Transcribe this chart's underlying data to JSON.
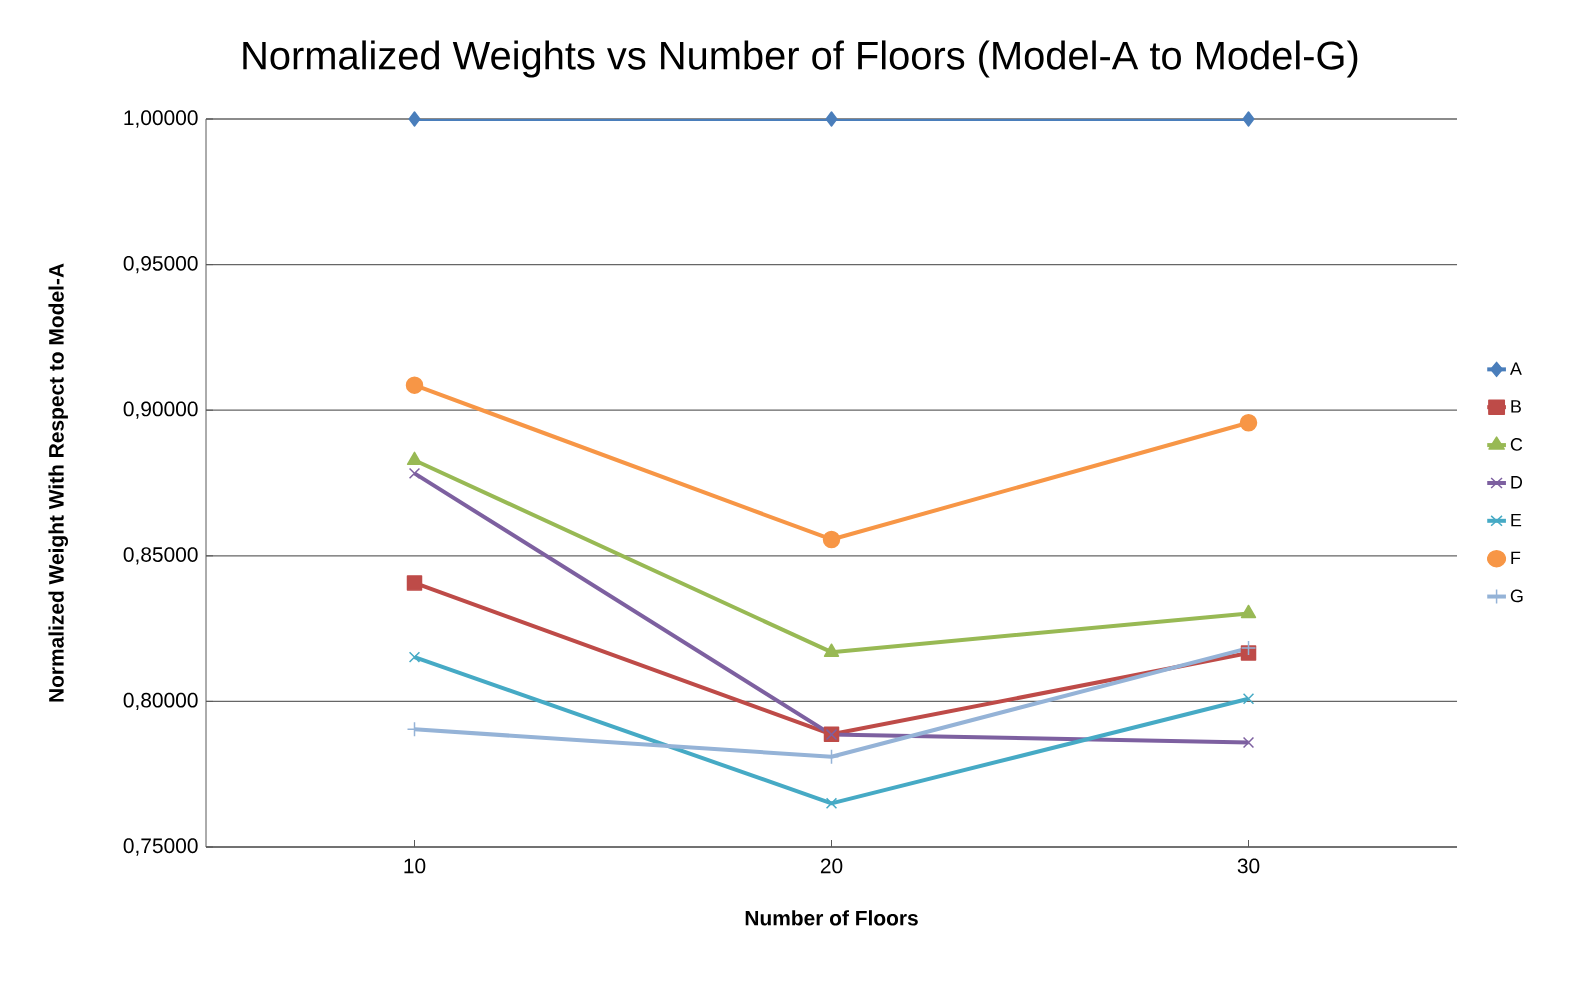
{
  "chart_data": {
    "type": "line",
    "title": "Normalized Weights vs Number of Floors (Model-A to Model-G)",
    "xlabel": "Number of Floors",
    "ylabel": "Normalized Weight With Respect to Model-A",
    "x": [
      10,
      20,
      30
    ],
    "xlim": [
      5,
      35
    ],
    "xticks": [
      10,
      20,
      30
    ],
    "ylim": [
      0.75,
      1.0
    ],
    "yticks": [
      {
        "value": 0.75,
        "label": "0,75000"
      },
      {
        "value": 0.8,
        "label": "0,80000"
      },
      {
        "value": 0.85,
        "label": "0,85000"
      },
      {
        "value": 0.9,
        "label": "0,90000"
      },
      {
        "value": 0.95,
        "label": "0,95000"
      },
      {
        "value": 1.0,
        "label": "1,00000"
      }
    ],
    "grid": "y",
    "legend": "right",
    "series": [
      {
        "name": "A",
        "color": "#4a7ebb",
        "marker": "diamond",
        "values": [
          1.0,
          1.0,
          1.0
        ]
      },
      {
        "name": "B",
        "color": "#be4b48",
        "marker": "square",
        "values": [
          0.8407,
          0.7887,
          0.8166
        ]
      },
      {
        "name": "C",
        "color": "#98b954",
        "marker": "triangle",
        "values": [
          0.8828,
          0.8169,
          0.8302
        ]
      },
      {
        "name": "D",
        "color": "#7d60a0",
        "marker": "cross",
        "values": [
          0.8783,
          0.7886,
          0.7859
        ]
      },
      {
        "name": "E",
        "color": "#46aac5",
        "marker": "cross",
        "values": [
          0.8152,
          0.765,
          0.8009
        ]
      },
      {
        "name": "F",
        "color": "#f79646",
        "marker": "circle",
        "values": [
          0.9086,
          0.8556,
          0.8957
        ]
      },
      {
        "name": "G",
        "color": "#95b3d7",
        "marker": "plus",
        "values": [
          0.7904,
          0.781,
          0.8183
        ]
      }
    ]
  }
}
